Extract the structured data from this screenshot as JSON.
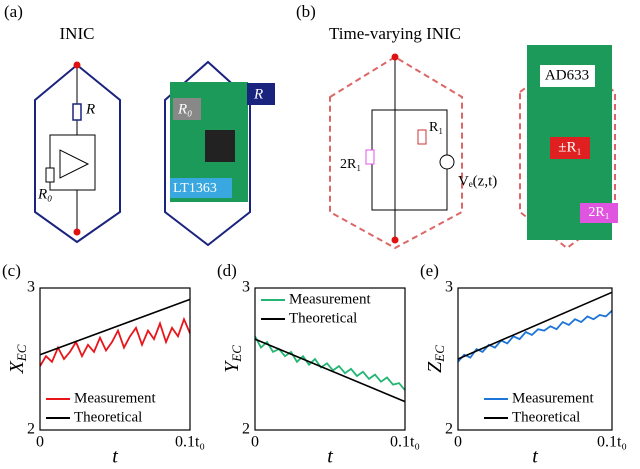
{
  "panels": {
    "a": {
      "label": "(a)",
      "title": "INIC",
      "resistor": "R",
      "resistor0": "R₀",
      "board_r0": "R₀",
      "board_r": "R",
      "board_chip": "LT1363"
    },
    "b": {
      "label": "(b)",
      "title": "Time-varying INIC",
      "r1": "R₁",
      "two_r1": "2R₁",
      "source": "Vₑ(z,t)",
      "board_chip": "AD633",
      "board_pm_r1": "±R₁",
      "board_two_r1": "2R₁"
    }
  },
  "chart_data": [
    {
      "type": "line",
      "panel_label": "(c)",
      "ylabel": {
        "main": "X",
        "sub": "EC"
      },
      "xlabel": "t",
      "xlim": [
        0,
        0.1
      ],
      "ylim": [
        2,
        3
      ],
      "xticks": [
        0,
        {
          "value": 0.1,
          "label": "0.1t₀"
        }
      ],
      "yticks": [
        2,
        3
      ],
      "legend": "lower left",
      "series": [
        {
          "name": "Measurement",
          "color": "#e8161b",
          "x": [
            0,
            0.004,
            0.008,
            0.012,
            0.016,
            0.02,
            0.024,
            0.028,
            0.032,
            0.036,
            0.04,
            0.044,
            0.048,
            0.052,
            0.056,
            0.06,
            0.064,
            0.068,
            0.072,
            0.076,
            0.08,
            0.084,
            0.088,
            0.092,
            0.096,
            0.1
          ],
          "values": [
            2.45,
            2.52,
            2.48,
            2.58,
            2.5,
            2.55,
            2.62,
            2.52,
            2.6,
            2.55,
            2.65,
            2.56,
            2.62,
            2.7,
            2.58,
            2.66,
            2.72,
            2.6,
            2.7,
            2.64,
            2.75,
            2.62,
            2.72,
            2.66,
            2.78,
            2.68
          ]
        },
        {
          "name": "Theoretical",
          "color": "#000000",
          "x": [
            0,
            0.1
          ],
          "values": [
            2.53,
            2.92
          ]
        }
      ]
    },
    {
      "type": "line",
      "panel_label": "(d)",
      "ylabel": {
        "main": "Y",
        "sub": "EC"
      },
      "xlabel": "t",
      "xlim": [
        0,
        0.1
      ],
      "ylim": [
        2,
        3
      ],
      "xticks": [
        0,
        {
          "value": 0.1,
          "label": "0.1t₀"
        }
      ],
      "yticks": [
        2,
        3
      ],
      "legend": "upper left",
      "series": [
        {
          "name": "Measurement",
          "color": "#22b573",
          "x": [
            0,
            0.004,
            0.008,
            0.012,
            0.016,
            0.02,
            0.024,
            0.028,
            0.032,
            0.036,
            0.04,
            0.044,
            0.048,
            0.052,
            0.056,
            0.06,
            0.064,
            0.068,
            0.072,
            0.076,
            0.08,
            0.084,
            0.088,
            0.092,
            0.096,
            0.1
          ],
          "values": [
            2.66,
            2.58,
            2.62,
            2.55,
            2.57,
            2.52,
            2.55,
            2.48,
            2.52,
            2.46,
            2.5,
            2.44,
            2.47,
            2.42,
            2.45,
            2.4,
            2.43,
            2.38,
            2.41,
            2.36,
            2.39,
            2.34,
            2.37,
            2.32,
            2.33,
            2.28
          ]
        },
        {
          "name": "Theoretical",
          "color": "#000000",
          "x": [
            0,
            0.1
          ],
          "values": [
            2.64,
            2.2
          ]
        }
      ]
    },
    {
      "type": "line",
      "panel_label": "(e)",
      "ylabel": {
        "main": "Z",
        "sub": "EC"
      },
      "xlabel": "t",
      "xlim": [
        0,
        0.1
      ],
      "ylim": [
        2,
        3
      ],
      "xticks": [
        0,
        {
          "value": 0.1,
          "label": "0.1t₀"
        }
      ],
      "yticks": [
        2,
        3
      ],
      "legend": "lower right",
      "series": [
        {
          "name": "Measurement",
          "color": "#1c75d8",
          "x": [
            0,
            0.004,
            0.008,
            0.012,
            0.016,
            0.02,
            0.024,
            0.028,
            0.032,
            0.036,
            0.04,
            0.044,
            0.048,
            0.052,
            0.056,
            0.06,
            0.064,
            0.068,
            0.072,
            0.076,
            0.08,
            0.084,
            0.088,
            0.092,
            0.096,
            0.1
          ],
          "values": [
            2.48,
            2.53,
            2.51,
            2.57,
            2.55,
            2.6,
            2.58,
            2.63,
            2.61,
            2.66,
            2.64,
            2.69,
            2.67,
            2.71,
            2.7,
            2.73,
            2.71,
            2.76,
            2.74,
            2.78,
            2.76,
            2.8,
            2.78,
            2.81,
            2.8,
            2.84
          ]
        },
        {
          "name": "Theoretical",
          "color": "#000000",
          "x": [
            0,
            0.1
          ],
          "values": [
            2.5,
            2.97
          ]
        }
      ]
    }
  ]
}
